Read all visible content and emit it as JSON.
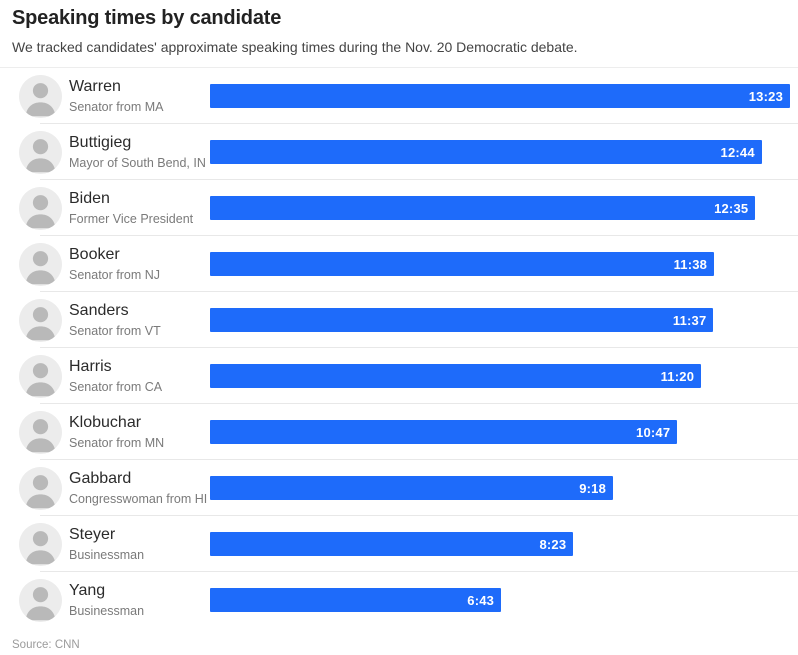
{
  "header": {
    "title": "Speaking times by candidate",
    "subtitle": "We tracked candidates' approximate speaking times during the Nov. 20 Democratic debate."
  },
  "source": "Source: CNN",
  "colors": {
    "bar_blue": "#1e6bfa",
    "value_label": "#ffffff",
    "divider": "#e8e8e8"
  },
  "chart_data": {
    "type": "bar",
    "orientation": "horizontal",
    "title": "Speaking times by candidate",
    "subtitle": "We tracked candidates' approximate speaking times during the Nov. 20 Democratic debate.",
    "source": "Source: CNN",
    "unit": "minutes:seconds",
    "max_seconds": 803,
    "bar_color": "#1e6bfa",
    "legend": "none",
    "grid": false,
    "rows": [
      {
        "name": "Warren",
        "role": "Senator from MA",
        "time": "13:23",
        "seconds": 803
      },
      {
        "name": "Buttigieg",
        "role": "Mayor of South Bend, IN",
        "time": "12:44",
        "seconds": 764
      },
      {
        "name": "Biden",
        "role": "Former Vice President",
        "time": "12:35",
        "seconds": 755
      },
      {
        "name": "Booker",
        "role": "Senator from NJ",
        "time": "11:38",
        "seconds": 698
      },
      {
        "name": "Sanders",
        "role": "Senator from VT",
        "time": "11:37",
        "seconds": 697
      },
      {
        "name": "Harris",
        "role": "Senator from CA",
        "time": "11:20",
        "seconds": 680
      },
      {
        "name": "Klobuchar",
        "role": "Senator from MN",
        "time": "10:47",
        "seconds": 647
      },
      {
        "name": "Gabbard",
        "role": "Congresswoman from HI",
        "time": "9:18",
        "seconds": 558
      },
      {
        "name": "Steyer",
        "role": "Businessman",
        "time": "8:23",
        "seconds": 503
      },
      {
        "name": "Yang",
        "role": "Businessman",
        "time": "6:43",
        "seconds": 403
      }
    ]
  }
}
